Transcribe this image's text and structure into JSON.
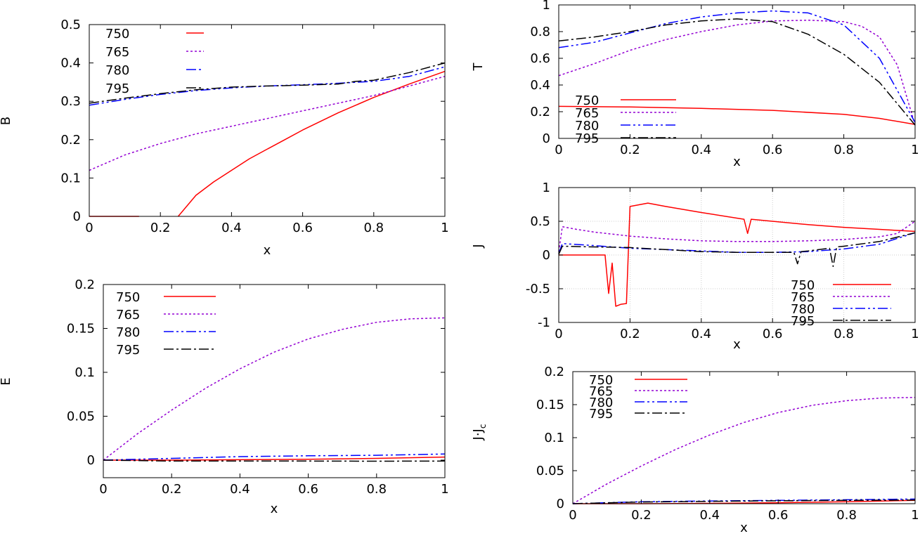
{
  "chart_data": [
    {
      "type": "line",
      "xlabel": "x",
      "ylabel": "B",
      "xlim": [
        0,
        1
      ],
      "ylim": [
        0,
        0.5
      ],
      "xticks": [
        "0",
        "0.2",
        "0.4",
        "0.6",
        "0.8",
        "1"
      ],
      "yticks": [
        "0",
        "0.1",
        "0.2",
        "0.3",
        "0.4",
        "0.5"
      ],
      "grid": false,
      "legend": "top-left",
      "series": [
        {
          "name": "750",
          "color": "#ff0000",
          "dash": "solid",
          "points": [
            [
              0,
              0
            ],
            [
              0.14,
              0
            ],
            [
              0.14,
              null
            ],
            [
              0.25,
              0
            ],
            [
              0.3,
              0.055
            ],
            [
              0.35,
              0.09
            ],
            [
              0.4,
              0.12
            ],
            [
              0.45,
              0.15
            ],
            [
              0.5,
              0.175
            ],
            [
              0.55,
              0.2
            ],
            [
              0.6,
              0.225
            ],
            [
              0.7,
              0.27
            ],
            [
              0.8,
              0.31
            ],
            [
              0.9,
              0.345
            ],
            [
              1,
              0.378
            ]
          ]
        },
        {
          "name": "765",
          "color": "#9400d3",
          "dash": "dot",
          "points": [
            [
              0,
              0.12
            ],
            [
              0.1,
              0.16
            ],
            [
              0.2,
              0.19
            ],
            [
              0.3,
              0.215
            ],
            [
              0.4,
              0.235
            ],
            [
              0.5,
              0.255
            ],
            [
              0.6,
              0.275
            ],
            [
              0.7,
              0.295
            ],
            [
              0.8,
              0.315
            ],
            [
              0.9,
              0.34
            ],
            [
              1,
              0.365
            ]
          ]
        },
        {
          "name": "780",
          "color": "#0000ff",
          "dash": "dashdotdot",
          "points": [
            [
              0,
              0.29
            ],
            [
              0.1,
              0.305
            ],
            [
              0.2,
              0.318
            ],
            [
              0.3,
              0.328
            ],
            [
              0.4,
              0.335
            ],
            [
              0.5,
              0.34
            ],
            [
              0.6,
              0.343
            ],
            [
              0.7,
              0.347
            ],
            [
              0.8,
              0.352
            ],
            [
              0.9,
              0.365
            ],
            [
              1,
              0.39
            ]
          ]
        },
        {
          "name": "795",
          "color": "#000000",
          "dash": "dashdot",
          "points": [
            [
              0,
              0.295
            ],
            [
              0.1,
              0.308
            ],
            [
              0.2,
              0.32
            ],
            [
              0.3,
              0.33
            ],
            [
              0.4,
              0.337
            ],
            [
              0.5,
              0.34
            ],
            [
              0.6,
              0.342
            ],
            [
              0.7,
              0.345
            ],
            [
              0.75,
              0.352
            ],
            [
              0.8,
              0.355
            ],
            [
              0.9,
              0.375
            ],
            [
              1,
              0.4
            ]
          ]
        }
      ],
      "legend_entries": [
        "750",
        "765",
        "780",
        "795"
      ]
    },
    {
      "type": "line",
      "xlabel": "x",
      "ylabel": "T",
      "xlim": [
        0,
        1
      ],
      "ylim": [
        0,
        1
      ],
      "xticks": [
        "0",
        "0.2",
        "0.4",
        "0.6",
        "0.8",
        "1"
      ],
      "yticks": [
        "0",
        "0.2",
        "0.4",
        "0.6",
        "0.8",
        "1"
      ],
      "grid": false,
      "legend": "bottom-left",
      "series": [
        {
          "name": "750",
          "color": "#ff0000",
          "dash": "solid",
          "points": [
            [
              0,
              0.24
            ],
            [
              0.2,
              0.235
            ],
            [
              0.4,
              0.225
            ],
            [
              0.6,
              0.21
            ],
            [
              0.8,
              0.18
            ],
            [
              0.9,
              0.15
            ],
            [
              1,
              0.105
            ]
          ]
        },
        {
          "name": "765",
          "color": "#9400d3",
          "dash": "dot",
          "points": [
            [
              0,
              0.47
            ],
            [
              0.1,
              0.56
            ],
            [
              0.2,
              0.66
            ],
            [
              0.3,
              0.74
            ],
            [
              0.4,
              0.8
            ],
            [
              0.5,
              0.85
            ],
            [
              0.6,
              0.88
            ],
            [
              0.7,
              0.885
            ],
            [
              0.8,
              0.875
            ],
            [
              0.85,
              0.84
            ],
            [
              0.9,
              0.76
            ],
            [
              0.95,
              0.55
            ],
            [
              1,
              0.1
            ]
          ]
        },
        {
          "name": "780",
          "color": "#0000ff",
          "dash": "dashdotdot",
          "points": [
            [
              0,
              0.68
            ],
            [
              0.1,
              0.72
            ],
            [
              0.2,
              0.79
            ],
            [
              0.3,
              0.86
            ],
            [
              0.4,
              0.91
            ],
            [
              0.5,
              0.94
            ],
            [
              0.6,
              0.955
            ],
            [
              0.7,
              0.94
            ],
            [
              0.8,
              0.85
            ],
            [
              0.9,
              0.6
            ],
            [
              1,
              0.12
            ]
          ]
        },
        {
          "name": "795",
          "color": "#000000",
          "dash": "dashdot",
          "points": [
            [
              0,
              0.73
            ],
            [
              0.1,
              0.76
            ],
            [
              0.2,
              0.8
            ],
            [
              0.3,
              0.85
            ],
            [
              0.4,
              0.88
            ],
            [
              0.5,
              0.895
            ],
            [
              0.6,
              0.875
            ],
            [
              0.7,
              0.78
            ],
            [
              0.8,
              0.63
            ],
            [
              0.9,
              0.42
            ],
            [
              1,
              0.1
            ]
          ]
        }
      ],
      "legend_entries": [
        "750",
        "765",
        "780",
        "795"
      ]
    },
    {
      "type": "line",
      "xlabel": "x",
      "ylabel": "J",
      "xlim": [
        0,
        1
      ],
      "ylim": [
        -1,
        1
      ],
      "xticks": [
        "0",
        "0.2",
        "0.4",
        "0.6",
        "0.8",
        "1"
      ],
      "yticks": [
        "-1",
        "-0.5",
        "0",
        "0.5",
        "1"
      ],
      "grid": true,
      "legend": "bottom-right",
      "series": [
        {
          "name": "750",
          "color": "#ff0000",
          "dash": "solid",
          "points": [
            [
              0,
              0
            ],
            [
              0.13,
              0
            ],
            [
              0.14,
              -0.57
            ],
            [
              0.15,
              -0.12
            ],
            [
              0.16,
              -0.76
            ],
            [
              0.175,
              -0.73
            ],
            [
              0.19,
              -0.72
            ],
            [
              0.2,
              0.72
            ],
            [
              0.22,
              0.74
            ],
            [
              0.25,
              0.77
            ],
            [
              0.3,
              0.72
            ],
            [
              0.4,
              0.63
            ],
            [
              0.52,
              0.53
            ],
            [
              0.53,
              0.32
            ],
            [
              0.54,
              0.53
            ],
            [
              0.6,
              0.5
            ],
            [
              0.7,
              0.45
            ],
            [
              0.8,
              0.41
            ],
            [
              0.9,
              0.38
            ],
            [
              1,
              0.35
            ]
          ]
        },
        {
          "name": "765",
          "color": "#9400d3",
          "dash": "dot",
          "points": [
            [
              0,
              0.05
            ],
            [
              0.01,
              0.42
            ],
            [
              0.05,
              0.38
            ],
            [
              0.1,
              0.34
            ],
            [
              0.2,
              0.28
            ],
            [
              0.3,
              0.24
            ],
            [
              0.4,
              0.21
            ],
            [
              0.5,
              0.2
            ],
            [
              0.6,
              0.2
            ],
            [
              0.7,
              0.21
            ],
            [
              0.8,
              0.23
            ],
            [
              0.9,
              0.27
            ],
            [
              0.95,
              0.32
            ],
            [
              1,
              0.5
            ]
          ]
        },
        {
          "name": "780",
          "color": "#0000ff",
          "dash": "dashdotdot",
          "points": [
            [
              0,
              0.02
            ],
            [
              0.01,
              0.17
            ],
            [
              0.1,
              0.14
            ],
            [
              0.2,
              0.1
            ],
            [
              0.3,
              0.08
            ],
            [
              0.4,
              0.06
            ],
            [
              0.5,
              0.04
            ],
            [
              0.6,
              0.04
            ],
            [
              0.7,
              0.05
            ],
            [
              0.8,
              0.09
            ],
            [
              0.9,
              0.16
            ],
            [
              1,
              0.33
            ]
          ]
        },
        {
          "name": "795",
          "color": "#000000",
          "dash": "dashdot",
          "points": [
            [
              0,
              0.01
            ],
            [
              0.01,
              0.13
            ],
            [
              0.1,
              0.12
            ],
            [
              0.2,
              0.11
            ],
            [
              0.3,
              0.08
            ],
            [
              0.4,
              0.05
            ],
            [
              0.5,
              0.04
            ],
            [
              0.6,
              0.04
            ],
            [
              0.66,
              0.04
            ],
            [
              0.67,
              -0.13
            ],
            [
              0.68,
              0.05
            ],
            [
              0.7,
              0.06
            ],
            [
              0.76,
              0.1
            ],
            [
              0.77,
              -0.17
            ],
            [
              0.78,
              0.12
            ],
            [
              0.8,
              0.13
            ],
            [
              0.9,
              0.2
            ],
            [
              1,
              0.33
            ]
          ]
        }
      ],
      "legend_entries": [
        "750",
        "765",
        "780",
        "795"
      ]
    },
    {
      "type": "line",
      "xlabel": "x",
      "ylabel": "E",
      "xlim": [
        0,
        1
      ],
      "ylim": [
        -0.02,
        0.2
      ],
      "xticks": [
        "0",
        "0.2",
        "0.4",
        "0.6",
        "0.8",
        "1"
      ],
      "yticks": [
        "0",
        "0.05",
        "0.1",
        "0.15",
        "0.2"
      ],
      "grid": false,
      "legend": "top-left",
      "series": [
        {
          "name": "750",
          "color": "#ff0000",
          "dash": "solid",
          "points": [
            [
              0,
              0
            ],
            [
              0.2,
              0
            ],
            [
              0.4,
              0.0005
            ],
            [
              0.6,
              0.001
            ],
            [
              0.8,
              0.002
            ],
            [
              1,
              0.0035
            ]
          ]
        },
        {
          "name": "765",
          "color": "#9400d3",
          "dash": "dot",
          "points": [
            [
              0,
              0
            ],
            [
              0.1,
              0.03
            ],
            [
              0.2,
              0.057
            ],
            [
              0.3,
              0.082
            ],
            [
              0.4,
              0.104
            ],
            [
              0.5,
              0.123
            ],
            [
              0.6,
              0.138
            ],
            [
              0.7,
              0.149
            ],
            [
              0.8,
              0.157
            ],
            [
              0.9,
              0.161
            ],
            [
              1,
              0.162
            ]
          ]
        },
        {
          "name": "780",
          "color": "#0000ff",
          "dash": "dashdotdot",
          "points": [
            [
              0,
              0
            ],
            [
              0.2,
              0.002
            ],
            [
              0.4,
              0.004
            ],
            [
              0.6,
              0.005
            ],
            [
              0.8,
              0.0055
            ],
            [
              1,
              0.007
            ]
          ]
        },
        {
          "name": "795",
          "color": "#000000",
          "dash": "dashdot",
          "points": [
            [
              0,
              0
            ],
            [
              0.2,
              -0.001
            ],
            [
              0.4,
              -0.001
            ],
            [
              0.6,
              -0.001
            ],
            [
              0.8,
              -0.0012
            ],
            [
              1,
              -0.001
            ]
          ]
        }
      ],
      "legend_entries": [
        "750",
        "765",
        "780",
        "795"
      ]
    },
    {
      "type": "line",
      "xlabel": "x",
      "ylabel": "J·J_c",
      "ylabel_main": "J·J",
      "ylabel_sub": "c",
      "xlim": [
        0,
        1
      ],
      "ylim": [
        0,
        0.2
      ],
      "xticks": [
        "0",
        "0.2",
        "0.4",
        "0.6",
        "0.8",
        "1"
      ],
      "yticks": [
        "0",
        "0.05",
        "0.1",
        "0.15",
        "0.2"
      ],
      "grid": false,
      "legend": "top-left",
      "series": [
        {
          "name": "750",
          "color": "#ff0000",
          "dash": "solid",
          "points": [
            [
              0,
              0
            ],
            [
              0.2,
              0
            ],
            [
              0.4,
              0.0005
            ],
            [
              0.6,
              0.0015
            ],
            [
              0.8,
              0.003
            ],
            [
              1,
              0.005
            ]
          ]
        },
        {
          "name": "765",
          "color": "#9400d3",
          "dash": "dot",
          "points": [
            [
              0,
              0
            ],
            [
              0.1,
              0.03
            ],
            [
              0.2,
              0.057
            ],
            [
              0.3,
              0.082
            ],
            [
              0.4,
              0.104
            ],
            [
              0.5,
              0.123
            ],
            [
              0.6,
              0.138
            ],
            [
              0.7,
              0.149
            ],
            [
              0.8,
              0.156
            ],
            [
              0.9,
              0.16
            ],
            [
              1,
              0.161
            ]
          ]
        },
        {
          "name": "780",
          "color": "#0000ff",
          "dash": "dashdotdot",
          "points": [
            [
              0,
              0
            ],
            [
              0.2,
              0.003
            ],
            [
              0.4,
              0.004
            ],
            [
              0.6,
              0.005
            ],
            [
              0.8,
              0.006
            ],
            [
              1,
              0.007
            ]
          ]
        },
        {
          "name": "795",
          "color": "#000000",
          "dash": "dashdot",
          "points": [
            [
              0,
              0
            ],
            [
              0.2,
              0.0025
            ],
            [
              0.4,
              0.0035
            ],
            [
              0.6,
              0.0045
            ],
            [
              0.8,
              0.005
            ],
            [
              1,
              0.0055
            ]
          ]
        }
      ],
      "legend_entries": [
        "750",
        "765",
        "780",
        "795"
      ]
    }
  ]
}
